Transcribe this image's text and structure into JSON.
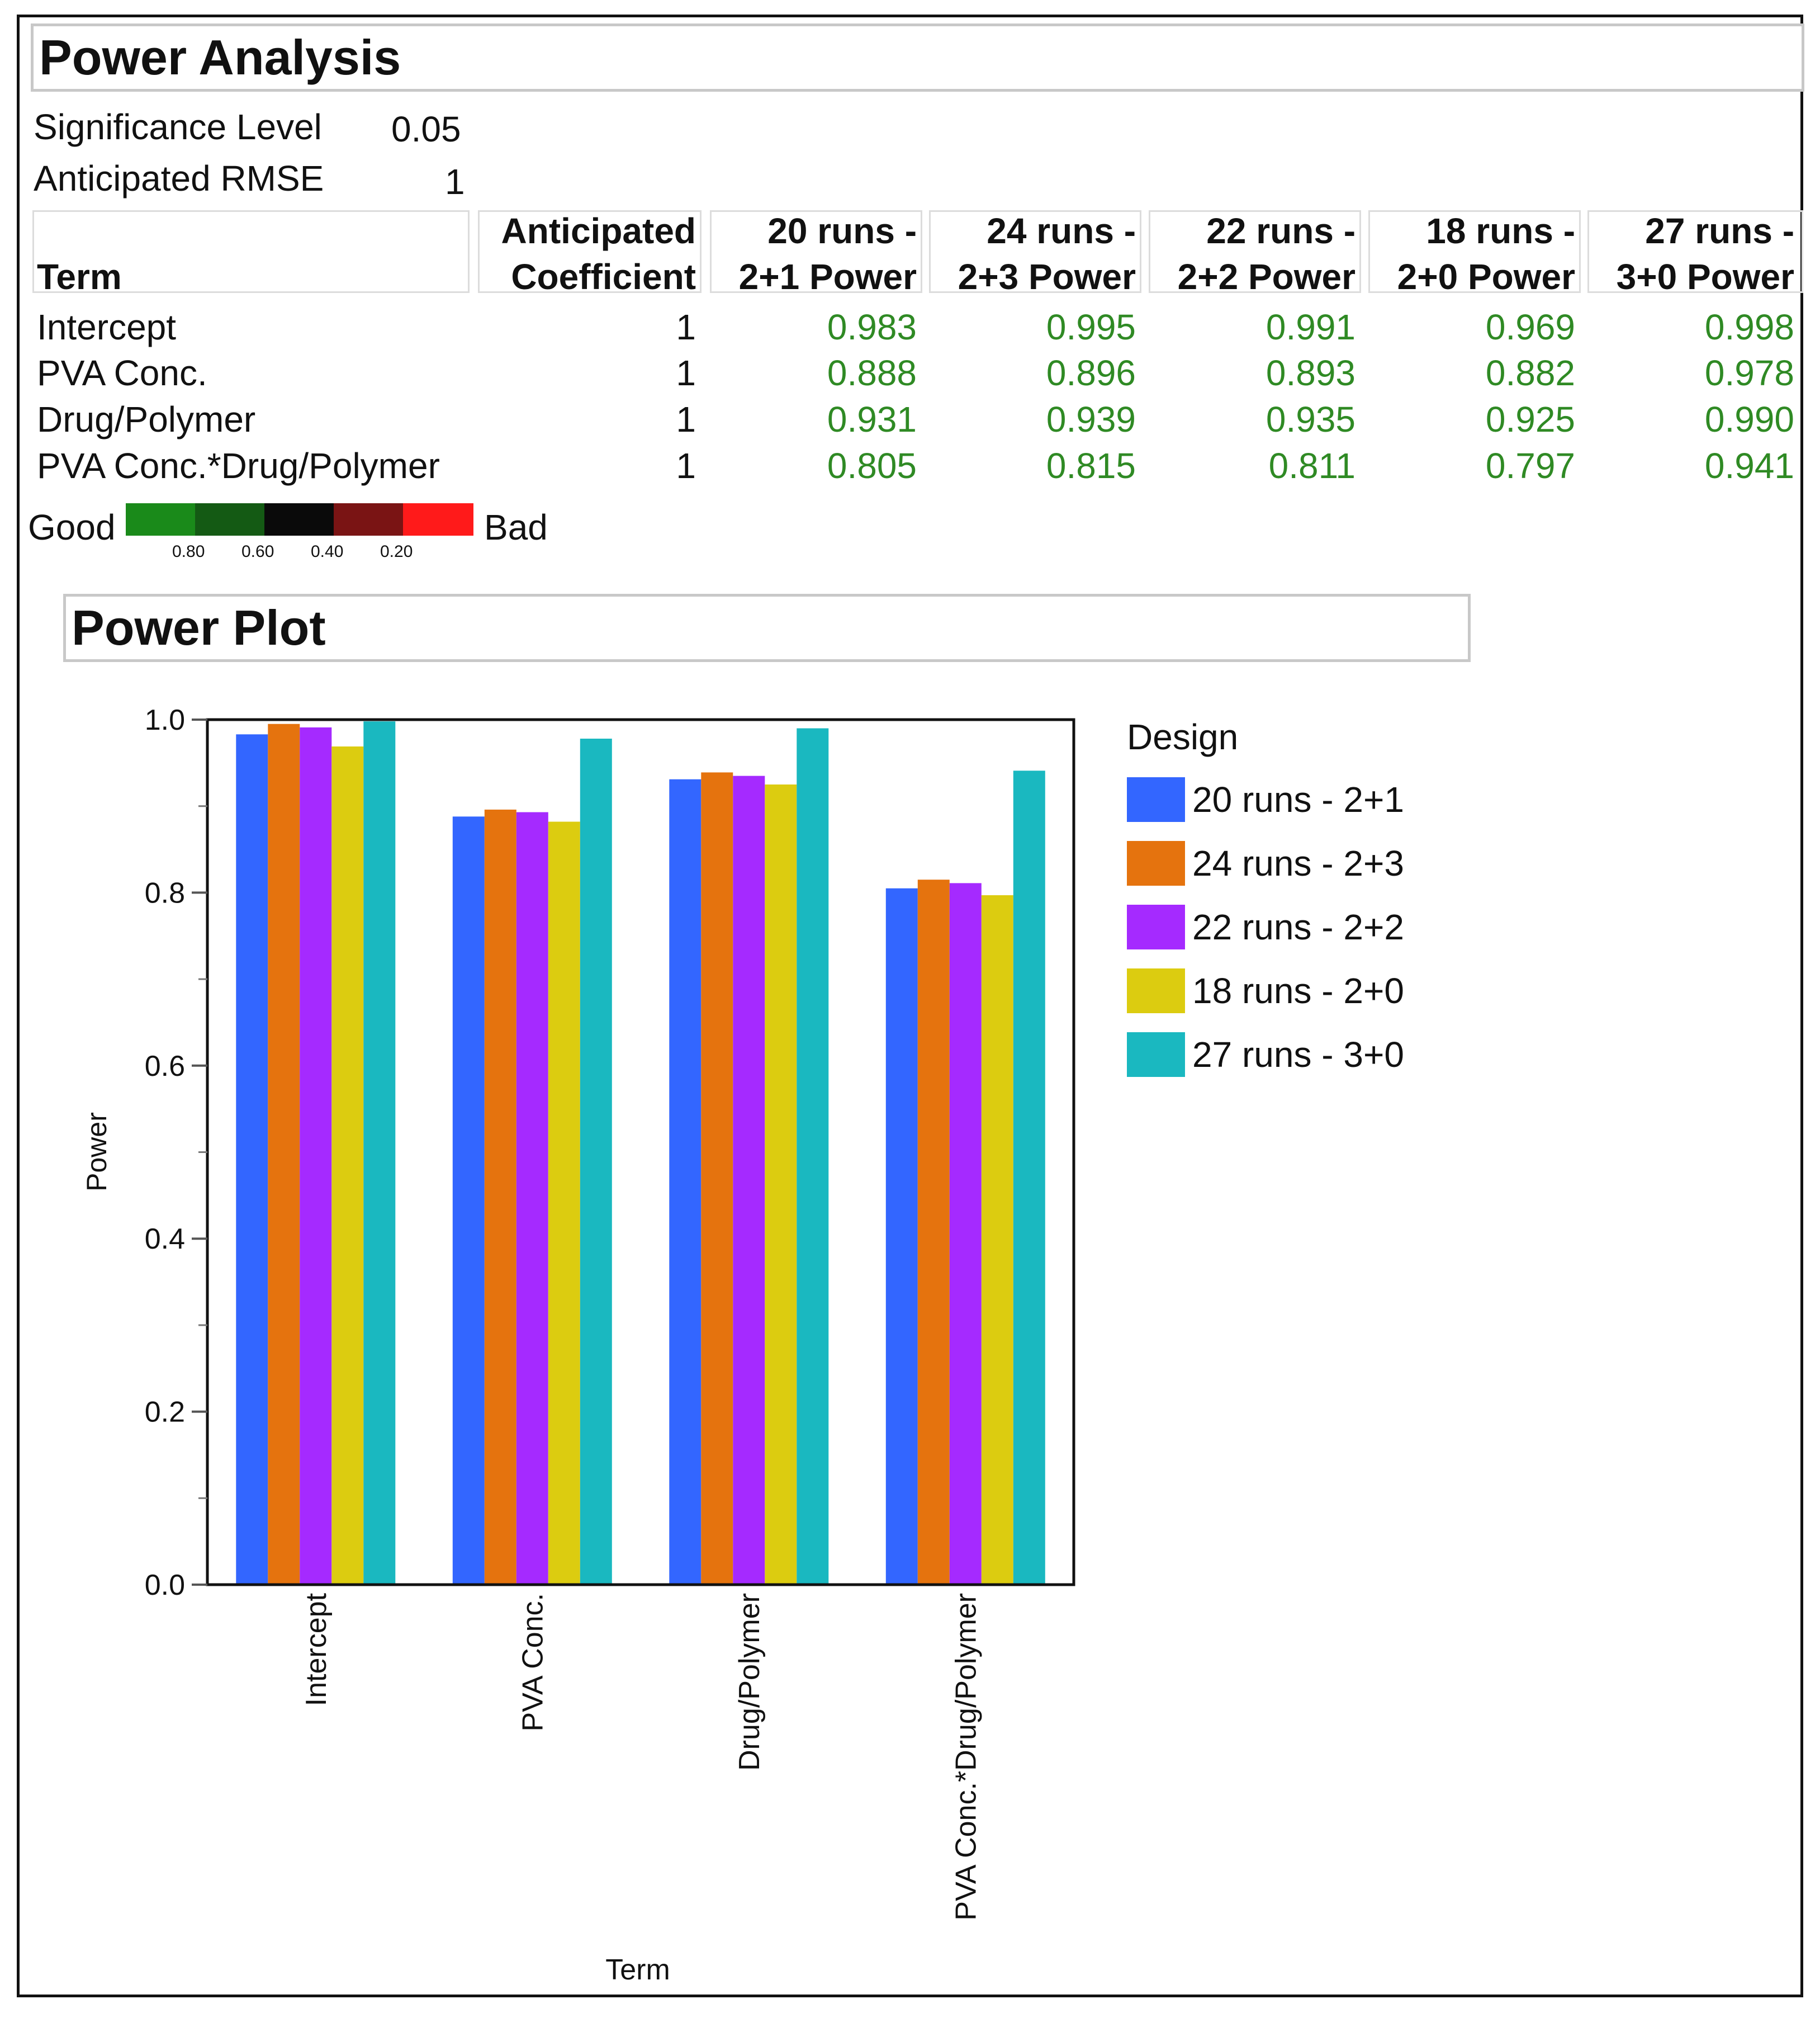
{
  "power_analysis": {
    "title": "Power Analysis",
    "significance_label": "Significance Level",
    "significance_value": "0.05",
    "rmse_label": "Anticipated RMSE",
    "rmse_value": "1",
    "table": {
      "headers": [
        {
          "top": "",
          "bottom": "Term"
        },
        {
          "top": "Anticipated",
          "bottom": "Coefficient"
        },
        {
          "top": "20 runs -",
          "bottom": "2+1 Power"
        },
        {
          "top": "24 runs -",
          "bottom": "2+3 Power"
        },
        {
          "top": "22 runs -",
          "bottom": "2+2 Power"
        },
        {
          "top": "18 runs -",
          "bottom": "2+0 Power"
        },
        {
          "top": "27 runs -",
          "bottom": "3+0 Power"
        }
      ],
      "rows": [
        {
          "term": "Intercept",
          "coef": "1",
          "powers": [
            "0.983",
            "0.995",
            "0.991",
            "0.969",
            "0.998"
          ]
        },
        {
          "term": "PVA Conc.",
          "coef": "1",
          "powers": [
            "0.888",
            "0.896",
            "0.893",
            "0.882",
            "0.978"
          ]
        },
        {
          "term": "Drug/Polymer",
          "coef": "1",
          "powers": [
            "0.931",
            "0.939",
            "0.935",
            "0.925",
            "0.990"
          ]
        },
        {
          "term": "PVA Conc.*Drug/Polymer",
          "coef": "1",
          "powers": [
            "0.805",
            "0.815",
            "0.811",
            "0.797",
            "0.941"
          ]
        }
      ],
      "value_color": "#2f8a24"
    },
    "legend_scale": {
      "good_label": "Good",
      "bad_label": "Bad",
      "ticks": [
        "0.80",
        "0.60",
        "0.40",
        "0.20"
      ],
      "colors": [
        "#1a8a1a",
        "#145a14",
        "#0a0a0a",
        "#7a1414",
        "#ff1a1a"
      ]
    }
  },
  "power_plot": {
    "title": "Power Plot"
  },
  "chart_data": {
    "type": "bar",
    "categories": [
      "Intercept",
      "PVA Conc.",
      "Drug/Polymer",
      "PVA Conc.*Drug/Polymer"
    ],
    "series": [
      {
        "name": "20 runs - 2+1",
        "color": "#3366ff",
        "values": [
          0.983,
          0.888,
          0.931,
          0.805
        ]
      },
      {
        "name": "24 runs - 2+3",
        "color": "#e5730e",
        "values": [
          0.995,
          0.896,
          0.939,
          0.815
        ]
      },
      {
        "name": "22 runs - 2+2",
        "color": "#a52aff",
        "values": [
          0.991,
          0.893,
          0.935,
          0.811
        ]
      },
      {
        "name": "18 runs - 2+0",
        "color": "#dccc10",
        "values": [
          0.969,
          0.882,
          0.925,
          0.797
        ]
      },
      {
        "name": "27 runs - 3+0",
        "color": "#1ab8c0",
        "values": [
          0.998,
          0.978,
          0.99,
          0.941
        ]
      }
    ],
    "xlabel": "Term",
    "ylabel": "Power",
    "ylim": [
      0,
      1
    ],
    "yticks": [
      "0.0",
      "0.2",
      "0.4",
      "0.6",
      "0.8",
      "1.0"
    ],
    "legend_title": "Design",
    "legend_position": "right",
    "grid": false
  }
}
